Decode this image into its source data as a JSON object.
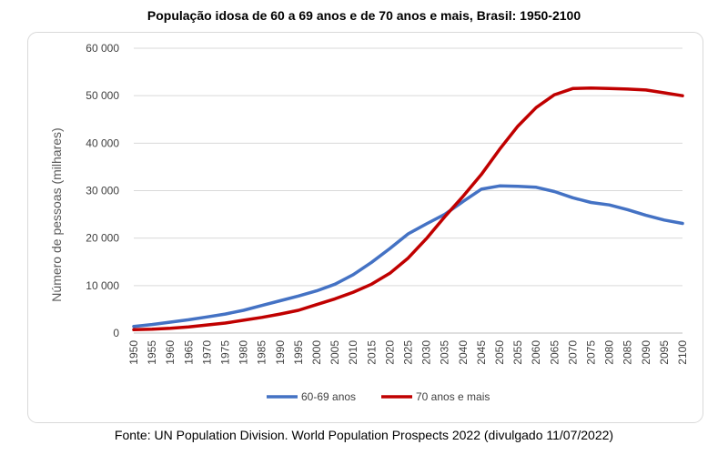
{
  "title": "População idosa de 60 a 69 anos e de 70 anos e mais, Brasil: 1950-2100",
  "source": "Fonte: UN Population Division. World Population Prospects 2022 (divulgado 11/07/2022)",
  "colors": {
    "series_1": "#4472C4",
    "series_2": "#C00000",
    "grid": "#d9d9d9",
    "tick_text": "#404040"
  },
  "chart_data": {
    "type": "line",
    "title": "População idosa de 60 a 69 anos e de 70 anos e mais, Brasil: 1950-2100",
    "xlabel": "",
    "ylabel": "Número de pessoas (milhares)",
    "xlim": [
      1950,
      2100
    ],
    "ylim": [
      0,
      60000
    ],
    "y_ticks": [
      0,
      10000,
      20000,
      30000,
      40000,
      50000,
      60000
    ],
    "y_tick_labels": [
      "0",
      "10 000",
      "20 000",
      "30 000",
      "40 000",
      "50 000",
      "60 000"
    ],
    "x_ticks": [
      1950,
      1955,
      1960,
      1965,
      1970,
      1975,
      1980,
      1985,
      1990,
      1995,
      2000,
      2005,
      2010,
      2015,
      2020,
      2025,
      2030,
      2035,
      2040,
      2045,
      2050,
      2055,
      2060,
      2065,
      2070,
      2075,
      2080,
      2085,
      2090,
      2095,
      2100
    ],
    "grid": true,
    "legend_position": "bottom",
    "x": [
      1950,
      1955,
      1960,
      1965,
      1970,
      1975,
      1980,
      1985,
      1990,
      1995,
      2000,
      2005,
      2010,
      2015,
      2020,
      2025,
      2030,
      2035,
      2040,
      2045,
      2050,
      2055,
      2060,
      2065,
      2070,
      2075,
      2080,
      2085,
      2090,
      2095,
      2100
    ],
    "series": [
      {
        "name": "60-69 anos",
        "values": [
          1400,
          1800,
          2300,
          2800,
          3400,
          4000,
          4800,
          5800,
          6800,
          7800,
          8900,
          10300,
          12300,
          14900,
          17800,
          20900,
          23000,
          25000,
          27700,
          30300,
          31000,
          30900,
          30700,
          29800,
          28500,
          27500,
          27000,
          26000,
          24800,
          23800,
          23100
        ]
      },
      {
        "name": "70 anos e mais",
        "values": [
          700,
          800,
          1000,
          1300,
          1700,
          2100,
          2700,
          3300,
          4000,
          4800,
          6000,
          7200,
          8600,
          10300,
          12600,
          15800,
          19900,
          24500,
          28800,
          33400,
          38700,
          43600,
          47500,
          50200,
          51500,
          51600,
          51500,
          51400,
          51200,
          50600,
          50000
        ]
      }
    ]
  }
}
